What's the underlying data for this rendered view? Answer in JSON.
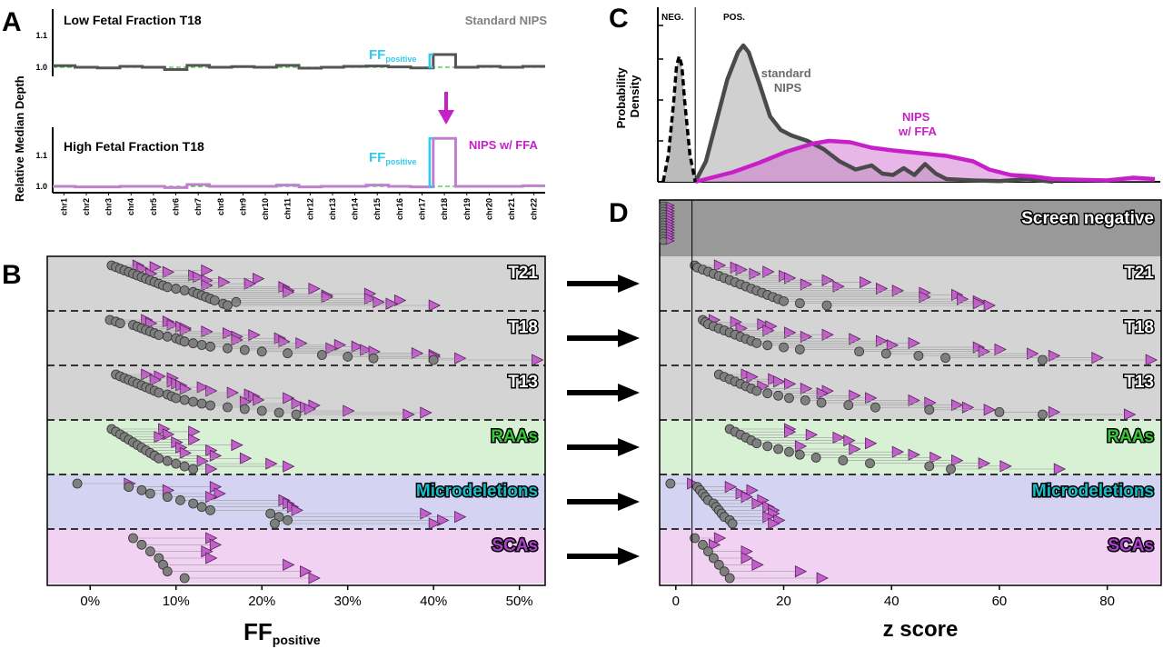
{
  "panel_letters": {
    "a": "A",
    "b": "B",
    "c": "C",
    "d": "D"
  },
  "colors": {
    "gray_point": "#7f7f7f",
    "magenta": "#c820c8",
    "triangle": "#c060c8",
    "cyan": "#33c8f0",
    "green_dashed": "#3fbf3f",
    "band_trisomy": "#d4d4d4",
    "band_raa": "#d8f0d4",
    "band_micro": "#d4d4f2",
    "band_sca": "#f2d2f2",
    "band_screen_negative": "#999999",
    "raa_label": "#35c935",
    "micro_label": "#18bcc8",
    "sca_label": "#b040d0"
  },
  "chart_data": [
    {
      "panel": "A",
      "type": "line",
      "ylabel": "Relative Median Depth",
      "chromosomes": [
        "chr1",
        "chr2",
        "chr3",
        "chr4",
        "chr5",
        "chr6",
        "chr7",
        "chr8",
        "chr9",
        "chr10",
        "chr11",
        "chr12",
        "chr13",
        "chr14",
        "chr15",
        "chr16",
        "chr17",
        "chr18",
        "chr19",
        "chr20",
        "chr21",
        "chr22"
      ],
      "subplots": [
        {
          "title": "Low Fetal Fraction T18",
          "right_label": "Standard NIPS",
          "yticks": [
            "1.0",
            "1.1"
          ],
          "ylim": [
            0.98,
            1.15
          ],
          "series": [
            {
              "values": [
                1.005,
                1.0,
                0.998,
                1.003,
                1.0,
                0.993,
                1.006,
                1.0,
                1.002,
                1.0,
                1.006,
                0.997,
                1.0,
                1.003,
                1.004,
                1.001,
                0.998,
                1.04,
                1.0,
                1.003,
                1.0,
                1.003
              ]
            }
          ],
          "annotation": "FF",
          "annotation_sub": "positive"
        },
        {
          "title": "High Fetal Fraction T18",
          "right_label": "NIPS w/ FFA",
          "yticks": [
            "1.0",
            "1.1"
          ],
          "ylim": [
            0.98,
            1.17
          ],
          "series": [
            {
              "values": [
                1.0,
                0.998,
                0.998,
                1.0,
                1.0,
                0.996,
                1.006,
                1.0,
                1.0,
                1.0,
                1.004,
                0.998,
                1.0,
                1.0,
                1.004,
                1.0,
                0.998,
                1.155,
                1.0,
                1.0,
                1.0,
                1.002
              ]
            }
          ],
          "annotation": "FF",
          "annotation_sub": "positive"
        }
      ]
    },
    {
      "panel": "C",
      "type": "area",
      "xlim": [
        -4,
        90
      ],
      "ylabel_line1": "Probability",
      "ylabel_line2": "Density",
      "region_labels": [
        "NEG.",
        "POS."
      ],
      "series": [
        {
          "name_line1": "standard",
          "name_line2": "NIPS",
          "x": [
            3,
            5,
            7,
            9,
            11,
            12,
            13,
            15,
            17,
            19,
            21,
            24,
            27,
            30,
            33,
            36,
            38,
            40,
            42,
            44,
            46,
            48,
            50,
            55,
            60,
            65,
            70
          ],
          "y": [
            0,
            0.15,
            0.45,
            0.75,
            0.95,
            1.0,
            0.95,
            0.72,
            0.48,
            0.38,
            0.34,
            0.3,
            0.24,
            0.15,
            0.09,
            0.12,
            0.06,
            0.05,
            0.1,
            0.05,
            0.13,
            0.06,
            0.02,
            0.01,
            0.005,
            0.02,
            0
          ]
        },
        {
          "name_line1": "NIPS",
          "name_line2": "w/ FFA",
          "x": [
            3,
            6,
            10,
            15,
            20,
            25,
            28,
            32,
            36,
            40,
            45,
            50,
            55,
            58,
            62,
            66,
            70,
            75,
            80,
            85,
            89
          ],
          "y": [
            0,
            0.03,
            0.07,
            0.14,
            0.22,
            0.28,
            0.3,
            0.29,
            0.25,
            0.23,
            0.21,
            0.19,
            0.15,
            0.09,
            0.05,
            0.04,
            0.02,
            0.015,
            0.01,
            0.03,
            0.02
          ]
        },
        {
          "name": "",
          "x": [
            -3,
            -2,
            -1,
            -0.5,
            0,
            0.5,
            1,
            2,
            3
          ],
          "y": [
            0,
            0.2,
            0.6,
            0.85,
            0.92,
            0.85,
            0.6,
            0.2,
            0
          ]
        }
      ]
    },
    {
      "panel": "B",
      "type": "scatter",
      "xlabel": "FF",
      "xlabel_sub": "positive",
      "xticks": [
        "0%",
        "10%",
        "20%",
        "30%",
        "40%",
        "50%"
      ],
      "xlim": [
        -5,
        53
      ],
      "groups": [
        {
          "label": "T21",
          "pairs": [
            [
              2.5,
              5.5
            ],
            [
              3,
              7.5
            ],
            [
              3.5,
              6
            ],
            [
              4,
              13.5
            ],
            [
              4.5,
              9
            ],
            [
              5,
              7
            ],
            [
              5.5,
              12
            ],
            [
              6,
              12.5
            ],
            [
              6.5,
              19.5
            ],
            [
              7,
              13.5
            ],
            [
              7.5,
              15.5
            ],
            [
              8,
              18.5
            ],
            [
              8.5,
              13.5
            ],
            [
              9,
              22.5
            ],
            [
              10,
              26
            ],
            [
              11,
              23
            ],
            [
              12,
              23
            ],
            [
              12.5,
              32.5
            ],
            [
              13,
              27.5
            ],
            [
              13.5,
              27.5
            ],
            [
              14,
              32.5
            ],
            [
              14.5,
              36
            ],
            [
              17,
              33.5
            ],
            [
              15.5,
              35
            ],
            [
              16,
              40
            ]
          ]
        },
        {
          "label": "T18",
          "pairs": [
            [
              2.3,
              6.5
            ],
            [
              3,
              9
            ],
            [
              3.5,
              7
            ],
            [
              5,
              9.5
            ],
            [
              5.5,
              10.5
            ],
            [
              6,
              11
            ],
            [
              6.5,
              11
            ],
            [
              7,
              13.5
            ],
            [
              7.5,
              16
            ],
            [
              8,
              19
            ],
            [
              9,
              17
            ],
            [
              10,
              22
            ],
            [
              10.5,
              17
            ],
            [
              11,
              22.5
            ],
            [
              12,
              24.5
            ],
            [
              13,
              29
            ],
            [
              14,
              31
            ],
            [
              16,
              28
            ],
            [
              18,
              32
            ],
            [
              20,
              33
            ],
            [
              23,
              38
            ],
            [
              27,
              40
            ],
            [
              30,
              40
            ],
            [
              33,
              43
            ],
            [
              40,
              52
            ]
          ]
        },
        {
          "label": "T13",
          "pairs": [
            [
              3,
              6.5
            ],
            [
              3.5,
              8
            ],
            [
              4,
              9.5
            ],
            [
              4.5,
              7.5
            ],
            [
              5,
              9.5
            ],
            [
              5.5,
              10
            ],
            [
              6,
              10.5
            ],
            [
              6.5,
              13
            ],
            [
              7,
              11
            ],
            [
              7.5,
              14
            ],
            [
              8,
              16.5
            ],
            [
              9,
              18.5
            ],
            [
              9.5,
              19
            ],
            [
              10,
              23
            ],
            [
              11,
              19.5
            ],
            [
              12,
              18
            ],
            [
              13,
              24
            ],
            [
              14,
              26
            ],
            [
              16,
              25
            ],
            [
              18,
              25.5
            ],
            [
              20,
              30
            ],
            [
              22,
              39
            ],
            [
              24,
              37
            ]
          ]
        },
        {
          "label": "RAAs",
          "pairs": [
            [
              2.5,
              8.5
            ],
            [
              3,
              12
            ],
            [
              3.5,
              9
            ],
            [
              4,
              8
            ],
            [
              4.5,
              12
            ],
            [
              5,
              10
            ],
            [
              5.5,
              17
            ],
            [
              6,
              10.5
            ],
            [
              6.5,
              14
            ],
            [
              7,
              11
            ],
            [
              7.5,
              14.5
            ],
            [
              8,
              18
            ],
            [
              9,
              13
            ],
            [
              10,
              21
            ],
            [
              11,
              23
            ],
            [
              12,
              14
            ]
          ]
        },
        {
          "label": "Microdeletions",
          "pairs": [
            [
              -1.5,
              4.5
            ],
            [
              4.5,
              14.5
            ],
            [
              6,
              9
            ],
            [
              7,
              15
            ],
            [
              9,
              14
            ],
            [
              10.5,
              22.5
            ],
            [
              12,
              23
            ],
            [
              13,
              23.5
            ],
            [
              14,
              24
            ],
            [
              21,
              39
            ],
            [
              22,
              43
            ],
            [
              23,
              41
            ],
            [
              21.5,
              40
            ]
          ]
        },
        {
          "label": "SCAs",
          "pairs": [
            [
              5,
              14
            ],
            [
              6,
              14.5
            ],
            [
              7,
              13.5
            ],
            [
              8,
              14
            ],
            [
              8.5,
              23
            ],
            [
              9,
              25
            ],
            [
              11,
              26
            ]
          ]
        }
      ]
    },
    {
      "panel": "D",
      "type": "scatter",
      "xlabel": "z score",
      "xticks": [
        "0",
        "20",
        "40",
        "60",
        "80"
      ],
      "xlim": [
        -3,
        90
      ],
      "top_band_label": "Screen negative",
      "groups": [
        {
          "label": "T21",
          "pairs": [
            [
              3.5,
              8
            ],
            [
              4,
              11
            ],
            [
              5,
              12
            ],
            [
              6,
              17
            ],
            [
              7,
              14.5
            ],
            [
              8,
              20
            ],
            [
              9,
              21
            ],
            [
              10,
              28
            ],
            [
              11,
              35
            ],
            [
              12,
              24
            ],
            [
              13,
              30
            ],
            [
              14,
              38
            ],
            [
              15,
              41
            ],
            [
              16,
              46
            ],
            [
              17,
              52
            ],
            [
              18,
              46
            ],
            [
              19,
              53
            ],
            [
              20,
              56
            ],
            [
              23,
              56
            ],
            [
              28,
              58
            ]
          ]
        },
        {
          "label": "T18",
          "pairs": [
            [
              5,
              7
            ],
            [
              5.5,
              11
            ],
            [
              6,
              16
            ],
            [
              7,
              17.5
            ],
            [
              8,
              12
            ],
            [
              9,
              17
            ],
            [
              10,
              21
            ],
            [
              11,
              28
            ],
            [
              12,
              24
            ],
            [
              13,
              33
            ],
            [
              14,
              38
            ],
            [
              15,
              44
            ],
            [
              17,
              40
            ],
            [
              20,
              56
            ],
            [
              23,
              60
            ],
            [
              34,
              57
            ],
            [
              39,
              66
            ],
            [
              45,
              70
            ],
            [
              50,
              78
            ],
            [
              68,
              88
            ]
          ]
        },
        {
          "label": "T13",
          "pairs": [
            [
              8,
              13
            ],
            [
              9,
              14
            ],
            [
              10,
              18
            ],
            [
              11,
              19
            ],
            [
              12,
              21
            ],
            [
              13,
              16
            ],
            [
              14,
              24
            ],
            [
              15,
              28
            ],
            [
              17,
              27
            ],
            [
              19,
              33
            ],
            [
              21,
              36
            ],
            [
              24,
              44
            ],
            [
              27,
              47
            ],
            [
              32,
              52
            ],
            [
              37,
              54
            ],
            [
              47,
              58
            ],
            [
              60,
              70
            ],
            [
              68,
              84
            ]
          ]
        },
        {
          "label": "RAAs",
          "pairs": [
            [
              10,
              21
            ],
            [
              11,
              21
            ],
            [
              12,
              25
            ],
            [
              13,
              30
            ],
            [
              14,
              32
            ],
            [
              15,
              36
            ],
            [
              17,
              23
            ],
            [
              19,
              33
            ],
            [
              21,
              41
            ],
            [
              23,
              44
            ],
            [
              26,
              48
            ],
            [
              31,
              52
            ],
            [
              36,
              57
            ],
            [
              47,
              61
            ],
            [
              51,
              71
            ]
          ]
        },
        {
          "label": "Microdeletions",
          "pairs": [
            [
              -1,
              3
            ],
            [
              4,
              10
            ],
            [
              4.5,
              14
            ],
            [
              5,
              12
            ],
            [
              5.5,
              13
            ],
            [
              6,
              16
            ],
            [
              7,
              15
            ],
            [
              7.5,
              17
            ],
            [
              8,
              18
            ],
            [
              8.5,
              18
            ],
            [
              9,
              17
            ],
            [
              10,
              19
            ],
            [
              10.5,
              18
            ]
          ]
        },
        {
          "label": "SCAs",
          "pairs": [
            [
              3.5,
              8
            ],
            [
              5,
              7
            ],
            [
              6,
              13
            ],
            [
              7,
              13
            ],
            [
              8,
              15
            ],
            [
              9,
              23
            ],
            [
              10,
              27
            ]
          ]
        }
      ]
    }
  ]
}
